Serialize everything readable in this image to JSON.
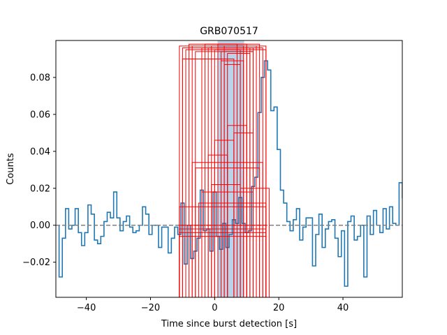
{
  "chart_data": {
    "type": "line",
    "title": "GRB070517",
    "xlabel": "Time since burst detection [s]",
    "ylabel": "Counts",
    "xlim": [
      -49.5,
      58.5
    ],
    "ylim": [
      -0.039,
      0.1
    ],
    "x_ticks": [
      -40,
      -20,
      0,
      20,
      40
    ],
    "x_tick_labels": [
      "−40",
      "−20",
      "0",
      "20",
      "40"
    ],
    "y_ticks": [
      -0.02,
      0.0,
      0.02,
      0.04,
      0.06,
      0.08
    ],
    "y_tick_labels": [
      "−0.02",
      "0.00",
      "0.02",
      "0.04",
      "0.06",
      "0.08"
    ],
    "grid": false,
    "colors": {
      "lightcurve": "#1f77b4",
      "highlight": "#a9c8e4",
      "boxes": "#ff0000",
      "baseline": "#808080"
    },
    "highlight_span": {
      "x0": 0.9,
      "x1": 9.2,
      "y0": -0.039,
      "y1": 0.1
    },
    "baseline_y": 0.0,
    "lightcurve": {
      "bin_width": 1.0,
      "x_start": -49.5,
      "y": [
        0.0,
        -0.028,
        -0.007,
        0.009,
        -0.002,
        0.0,
        0.009,
        -0.004,
        -0.011,
        -0.004,
        0.011,
        0.006,
        -0.008,
        -0.01,
        -0.006,
        0.002,
        0.007,
        0.004,
        0.018,
        0.004,
        -0.003,
        0.002,
        0.005,
        -0.001,
        -0.004,
        -0.003,
        0.0,
        0.01,
        0.006,
        -0.005,
        0.0,
        0.0,
        -0.012,
        -0.001,
        -0.001,
        -0.015,
        -0.007,
        -0.001,
        -0.005,
        0.012,
        -0.021,
        0.0,
        -0.018,
        -0.014,
        -0.007,
        0.019,
        -0.003,
        -0.002,
        -0.014,
        0.018,
        -0.006,
        -0.013,
        0.001,
        -0.012,
        -0.005,
        0.003,
        0.001,
        0.015,
        0.001,
        -0.004,
        -0.003,
        0.021,
        0.026,
        0.061,
        0.08,
        0.089,
        0.084,
        0.062,
        0.064,
        0.041,
        0.019,
        0.012,
        0.002,
        -0.003,
        0.003,
        0.009,
        -0.008,
        -0.001,
        0.004,
        0.004,
        -0.022,
        -0.005,
        0.006,
        -0.012,
        -0.002,
        0.002,
        0.003,
        -0.007,
        -0.017,
        -0.003,
        -0.033,
        0.002,
        0.005,
        -0.008,
        -0.006,
        0.0,
        -0.028,
        0.005,
        -0.005,
        0.008,
        0.0,
        -0.004,
        0.009,
        -0.002,
        0.01,
        0.001,
        0.0,
        0.023,
        0.015,
        0.001,
        -0.007,
        0.003,
        0.026,
        0.0,
        -0.008,
        0.0,
        0.008,
        0.012,
        0.016,
        0.0
      ]
    },
    "boxes": [
      {
        "x0": -11,
        "x1": 16,
        "y0": -0.039,
        "y1": 0.097
      },
      {
        "x0": -10,
        "x1": 15,
        "y0": -0.039,
        "y1": 0.096
      },
      {
        "x0": -9,
        "x1": 16,
        "y0": -0.039,
        "y1": 0.095
      },
      {
        "x0": -8,
        "x1": 14,
        "y0": -0.039,
        "y1": 0.098
      },
      {
        "x0": -7,
        "x1": 13,
        "y0": -0.039,
        "y1": 0.097
      },
      {
        "x0": -6,
        "x1": 12,
        "y0": -0.039,
        "y1": 0.094
      },
      {
        "x0": -4,
        "x1": 12,
        "y0": -0.039,
        "y1": 0.096
      },
      {
        "x0": -3,
        "x1": 10,
        "y0": -0.039,
        "y1": 0.098
      },
      {
        "x0": -2,
        "x1": 11,
        "y0": -0.039,
        "y1": 0.096
      },
      {
        "x0": -1,
        "x1": 9,
        "y0": -0.039,
        "y1": 0.097
      },
      {
        "x0": 0,
        "x1": 8,
        "y0": -0.039,
        "y1": 0.095
      },
      {
        "x0": 1,
        "x1": 7,
        "y0": -0.039,
        "y1": 0.098
      },
      {
        "x0": 2,
        "x1": 12,
        "y0": -0.039,
        "y1": 0.094
      },
      {
        "x0": 3,
        "x1": 10,
        "y0": -0.039,
        "y1": 0.097
      },
      {
        "x0": 4,
        "x1": 11,
        "y0": -0.039,
        "y1": 0.093
      },
      {
        "x0": -10,
        "x1": 6,
        "y0": -0.039,
        "y1": 0.09
      },
      {
        "x0": -11,
        "x1": 16,
        "y0": -0.039,
        "y1": 0.01
      },
      {
        "x0": -11,
        "x1": 16,
        "y0": -0.039,
        "y1": 0.0
      },
      {
        "x0": -11,
        "x1": 16,
        "y0": -0.039,
        "y1": -0.002
      },
      {
        "x0": -11,
        "x1": 16,
        "y0": -0.039,
        "y1": -0.004
      },
      {
        "x0": -11,
        "x1": 16,
        "y0": -0.039,
        "y1": -0.006
      },
      {
        "x0": -5,
        "x1": 13,
        "y0": -0.039,
        "y1": 0.012
      },
      {
        "x0": -4,
        "x1": 12,
        "y0": -0.039,
        "y1": 0.018
      },
      {
        "x0": 0,
        "x1": 6,
        "y0": -0.039,
        "y1": 0.046
      },
      {
        "x0": 2,
        "x1": 9,
        "y0": -0.039,
        "y1": 0.089
      },
      {
        "x0": 3,
        "x1": 8,
        "y0": -0.039,
        "y1": 0.087
      },
      {
        "x0": 4,
        "x1": 10,
        "y0": -0.039,
        "y1": 0.054
      },
      {
        "x0": 6,
        "x1": 12,
        "y0": -0.039,
        "y1": 0.05
      },
      {
        "x0": 8,
        "x1": 17,
        "y0": -0.039,
        "y1": 0.02
      },
      {
        "x0": -2,
        "x1": 4,
        "y0": -0.039,
        "y1": 0.038
      },
      {
        "x0": -7,
        "x1": 15,
        "y0": -0.039,
        "y1": 0.034
      },
      {
        "x0": -6,
        "x1": 14,
        "y0": -0.039,
        "y1": 0.031
      },
      {
        "x0": -1,
        "x1": 8,
        "y0": -0.039,
        "y1": 0.022
      },
      {
        "x0": 10,
        "x1": 16,
        "y0": -0.039,
        "y1": 0.012
      }
    ]
  }
}
